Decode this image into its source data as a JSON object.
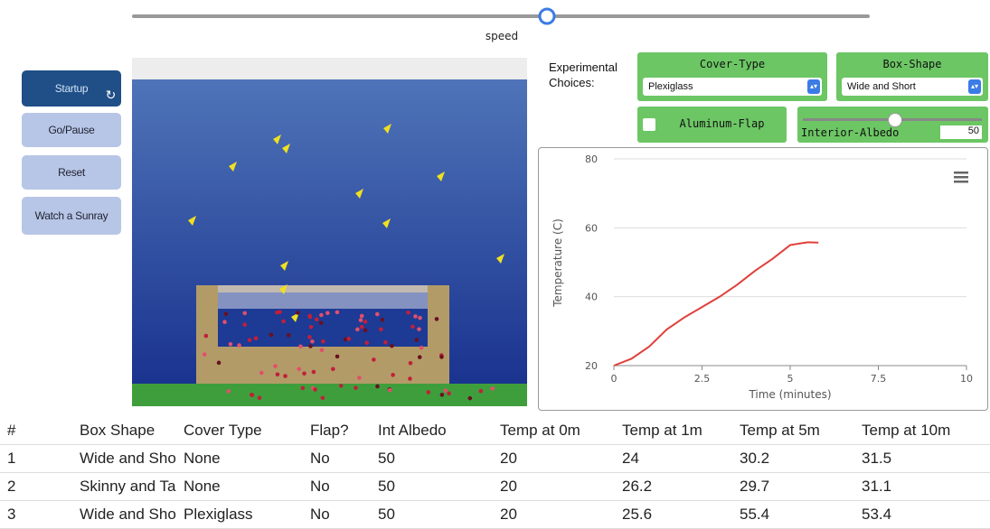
{
  "speed_slider": {
    "label": "speed"
  },
  "buttons": [
    "Startup",
    "Go/Pause",
    "Reset",
    "Watch a Sunray"
  ],
  "choices_label": "Experimental Choices:",
  "cover_type": {
    "label": "Cover-Type",
    "value": "Plexiglass"
  },
  "box_shape": {
    "label": "Box-Shape",
    "value": "Wide and Short"
  },
  "aluminum_flap": {
    "label": "Aluminum-Flap"
  },
  "interior_albedo": {
    "label": "Interior-Albedo",
    "value": 50
  },
  "chart_data": {
    "type": "line",
    "y_label": "Temperature (C)",
    "x_label": "Time (minutes)",
    "x": [
      0,
      0.5,
      1,
      1.5,
      2,
      2.5,
      3,
      3.5,
      4,
      4.5,
      5,
      5.5,
      5.8
    ],
    "series": [
      {
        "color": "#e0403a",
        "values": [
          20,
          22,
          25.5,
          30.5,
          34,
          37,
          40,
          43.5,
          47.5,
          51,
          55,
          55.8,
          55.7
        ]
      }
    ],
    "xlim": [
      0,
      10
    ],
    "ylim": [
      20,
      80
    ],
    "xticks": [
      0,
      2.5,
      5,
      7.5,
      10
    ],
    "yticks": [
      20,
      40,
      60,
      80
    ],
    "grid": true
  },
  "table": {
    "header": [
      "#",
      "Box Shape",
      "Cover Type",
      "Flap?",
      "Int Albedo",
      "Temp at 0m",
      "Temp at 1m",
      "Temp at 5m",
      "Temp at 10m"
    ],
    "rows": [
      [
        1,
        "Wide and Short",
        "None",
        "No",
        50,
        20,
        24,
        30.2,
        31.5
      ],
      [
        2,
        "Skinny and Tall",
        "None",
        "No",
        50,
        20,
        26.2,
        29.7,
        31.1
      ],
      [
        3,
        "Wide and Short",
        "Plexiglass",
        "No",
        50,
        20,
        25.6,
        55.4,
        53.4
      ]
    ]
  }
}
